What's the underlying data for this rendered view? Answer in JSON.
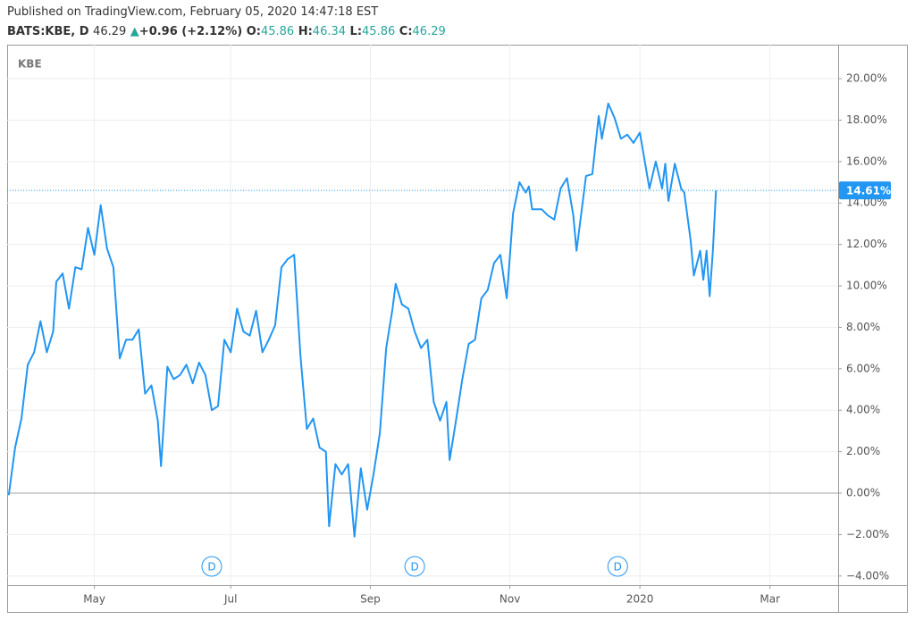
{
  "header": {
    "published": "Published on TradingView.com, February 05, 2020 14:47:18 EST",
    "symbol": "BATS:KBE, D",
    "price": "46.29",
    "change": "+0.96 (+2.12%)",
    "ohlc": [
      {
        "label": "O:",
        "value": "45.86"
      },
      {
        "label": "H:",
        "value": "46.34"
      },
      {
        "label": "L:",
        "value": "45.86"
      },
      {
        "label": "C:",
        "value": "46.29"
      }
    ]
  },
  "chart_data": {
    "type": "line",
    "series": [
      {
        "name": "KBE",
        "color": "#2196f3",
        "x": [
          0,
          2,
          4,
          6,
          8,
          10,
          12,
          14,
          15,
          17,
          19,
          21,
          23,
          25,
          27,
          29,
          31,
          33,
          35,
          37,
          39,
          41,
          43,
          45,
          47,
          48,
          50,
          52,
          54,
          56,
          58,
          60,
          62,
          64,
          66,
          68,
          70,
          72,
          74,
          76,
          78,
          80,
          82,
          84,
          86,
          88,
          90,
          92,
          94,
          96,
          98,
          100,
          101,
          103,
          105,
          107,
          109,
          111,
          113,
          115,
          117,
          119,
          121,
          122,
          124,
          126,
          128,
          130,
          132,
          134,
          136,
          138,
          139,
          141,
          143,
          145,
          147,
          149,
          151,
          153,
          155,
          157,
          159,
          161,
          163,
          164,
          165,
          168,
          170,
          172,
          174,
          176,
          178,
          179,
          181,
          182,
          184,
          186,
          187,
          189,
          191,
          193,
          195,
          197,
          199,
          201,
          202,
          204,
          206,
          207,
          208,
          210,
          212,
          213,
          215,
          216,
          218,
          219,
          220,
          221,
          222,
          223
        ],
        "values": [
          -0.1,
          2.2,
          3.6,
          6.2,
          6.8,
          8.3,
          6.8,
          7.8,
          10.2,
          10.6,
          8.9,
          10.9,
          10.8,
          12.8,
          11.5,
          13.9,
          11.8,
          10.9,
          6.5,
          7.4,
          7.4,
          7.9,
          4.8,
          5.2,
          3.5,
          1.3,
          6.1,
          5.5,
          5.7,
          6.2,
          5.3,
          6.3,
          5.7,
          4.0,
          4.2,
          7.4,
          6.8,
          8.9,
          7.8,
          7.6,
          8.8,
          6.8,
          7.4,
          8.1,
          10.9,
          11.3,
          11.5,
          6.6,
          3.1,
          3.6,
          2.2,
          2.0,
          -1.6,
          1.4,
          0.9,
          1.4,
          -2.1,
          1.2,
          -0.8,
          0.9,
          2.9,
          7.0,
          8.9,
          10.1,
          9.1,
          8.9,
          7.8,
          7.0,
          7.4,
          4.4,
          3.5,
          4.4,
          1.6,
          3.5,
          5.5,
          7.2,
          7.4,
          9.4,
          9.8,
          11.1,
          11.5,
          9.4,
          13.5,
          15.0,
          14.5,
          14.8,
          13.7,
          13.7,
          13.4,
          13.2,
          14.7,
          15.2,
          13.4,
          11.7,
          14.1,
          15.3,
          15.4,
          18.2,
          17.1,
          18.8,
          18.1,
          17.1,
          17.3,
          16.9,
          17.4,
          15.6,
          14.7,
          16.0,
          14.7,
          15.9,
          14.1,
          15.9,
          14.7,
          14.5,
          12.2,
          10.5,
          11.7,
          10.3,
          11.7,
          9.5,
          11.7,
          14.61
        ]
      }
    ],
    "price_line": {
      "value": 14.61,
      "label": "14.61%"
    },
    "events": [
      {
        "x": 64,
        "label": "D"
      },
      {
        "x": 128,
        "label": "D"
      },
      {
        "x": 192,
        "label": "D"
      }
    ],
    "xlim": [
      -0.5,
      261.5
    ],
    "xticks": [
      {
        "value": 27,
        "label": "May"
      },
      {
        "value": 70,
        "label": "Jul"
      },
      {
        "value": 114,
        "label": "Sep"
      },
      {
        "value": 158,
        "label": "Nov"
      },
      {
        "value": 199,
        "label": "2020"
      },
      {
        "value": 240,
        "label": "Mar"
      }
    ],
    "ylim": [
      -4.44,
      21.64
    ],
    "yticks": [
      {
        "value": -4,
        "label": "−4.00%"
      },
      {
        "value": -2,
        "label": "−2.00%"
      },
      {
        "value": 0,
        "label": "0.00%"
      },
      {
        "value": 2,
        "label": "2.00%"
      },
      {
        "value": 4,
        "label": "4.00%"
      },
      {
        "value": 6,
        "label": "6.00%"
      },
      {
        "value": 8,
        "label": "8.00%"
      },
      {
        "value": 10,
        "label": "10.00%"
      },
      {
        "value": 12,
        "label": "12.00%"
      },
      {
        "value": 14,
        "label": "14.00%"
      },
      {
        "value": 16,
        "label": "16.00%"
      },
      {
        "value": 18,
        "label": "18.00%"
      },
      {
        "value": 20,
        "label": "20.00%"
      }
    ],
    "grid": true
  }
}
